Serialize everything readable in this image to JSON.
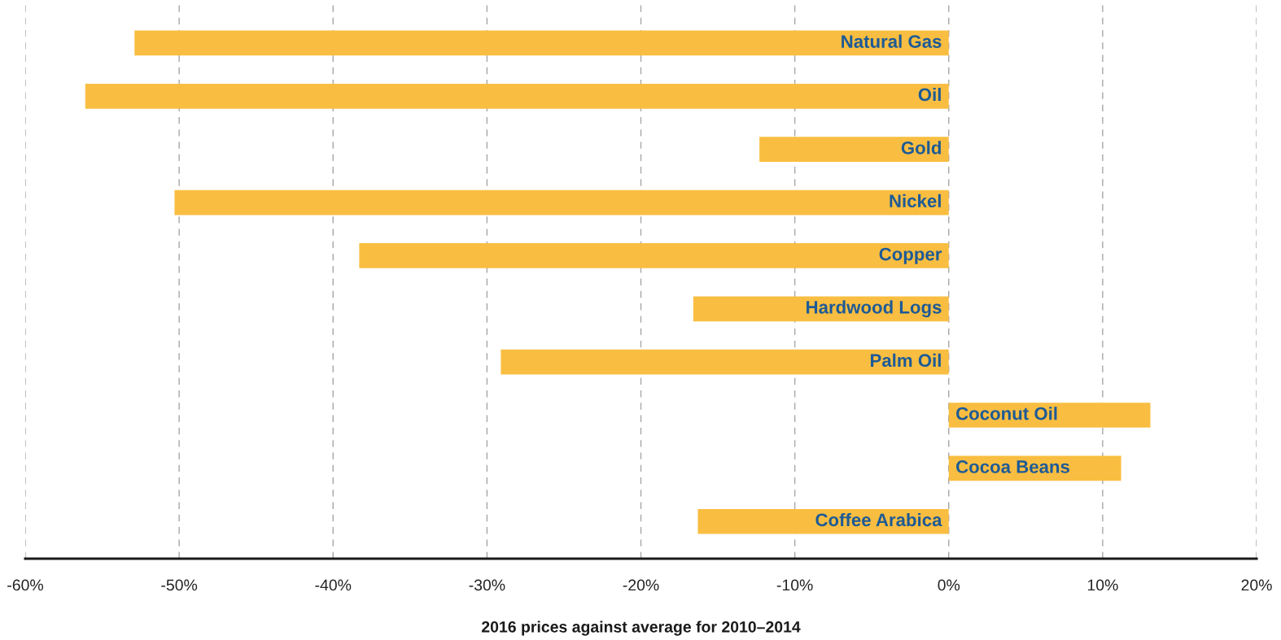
{
  "chart_data": {
    "type": "bar",
    "orientation": "horizontal",
    "categories": [
      "Natural Gas",
      "Oil",
      "Gold",
      "Nickel",
      "Copper",
      "Hardwood Logs",
      "Palm Oil",
      "Coconut Oil",
      "Cocoa Beans",
      "Coffee Arabica"
    ],
    "values": [
      -52.9,
      -56.1,
      -12.3,
      -50.3,
      -38.3,
      -16.6,
      -29.1,
      13.1,
      11.2,
      -16.3
    ],
    "color": "#f9be41",
    "xlim": [
      -60,
      20
    ],
    "xticks": [
      {
        "value": -60,
        "label": "-60%"
      },
      {
        "value": -50,
        "label": "-50%"
      },
      {
        "value": -40,
        "label": "-40%"
      },
      {
        "value": -30,
        "label": "-30%"
      },
      {
        "value": -20,
        "label": "-20%"
      },
      {
        "value": -10,
        "label": "-10%"
      },
      {
        "value": 0,
        "label": "0%"
      },
      {
        "value": 10,
        "label": "10%"
      },
      {
        "value": 20,
        "label": "20%"
      }
    ],
    "xlabel": "2016 prices against average for 2010–2014",
    "grid": "x",
    "tick_labels": "x"
  }
}
